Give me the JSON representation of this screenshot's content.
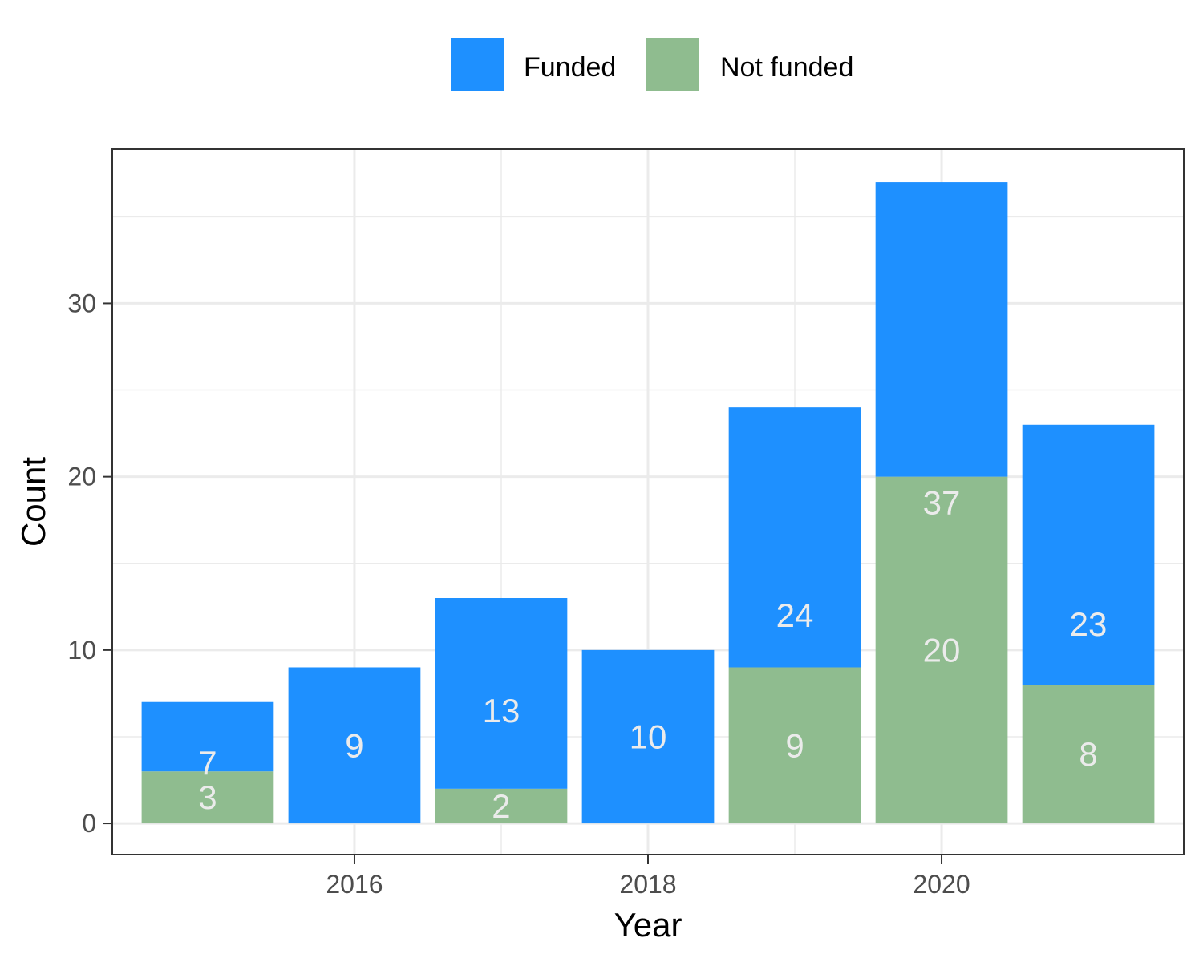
{
  "chart_data": {
    "type": "bar",
    "stacked": true,
    "categories": [
      2015,
      2016,
      2017,
      2018,
      2019,
      2020,
      2021
    ],
    "series": [
      {
        "name": "Not funded",
        "values": [
          3,
          0,
          2,
          0,
          9,
          20,
          8
        ],
        "color": "#8fbc8f",
        "labels": [
          "3",
          "",
          "2",
          "",
          "9",
          "20",
          "8"
        ]
      },
      {
        "name": "Funded",
        "values": [
          4,
          9,
          11,
          10,
          15,
          17,
          15
        ],
        "color": "#1e90ff",
        "labels": [
          "7",
          "9",
          "13",
          "10",
          "24",
          "37",
          "23"
        ]
      }
    ],
    "totals": [
      7,
      9,
      13,
      10,
      24,
      37,
      23
    ],
    "xlabel": "Year",
    "ylabel": "Count",
    "xticks": [
      2016,
      2018,
      2020
    ],
    "yticks": [
      0,
      10,
      20,
      30
    ],
    "ylim": [
      -1.8,
      38.9
    ],
    "xlim": [
      2014.35,
      2021.65
    ],
    "legend": {
      "position": "top",
      "items": [
        "Funded",
        "Not funded"
      ]
    },
    "grid": true,
    "colors": {
      "funded": "#1e90ff",
      "not_funded": "#8fbc8f",
      "grid": "#ebebeb",
      "panel_border": "#333333",
      "bar_label": "#ebebeb"
    }
  }
}
